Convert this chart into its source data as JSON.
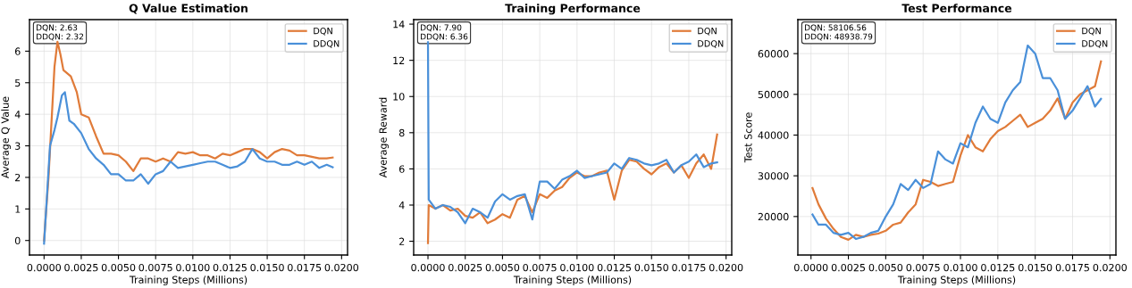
{
  "chart_data": [
    {
      "type": "line",
      "title": "Q Value Estimation",
      "xlabel": "Training Steps (Millions)",
      "ylabel": "Average Q Value",
      "annotations": [
        "DQN: 2.63\nDDQN: 2.32"
      ],
      "legend": "top right",
      "grid": true,
      "xlim": [
        -0.00098,
        0.0204
      ],
      "ylim": [
        -0.46,
        7.0
      ],
      "xticks": [
        {
          "value": 0,
          "label": "0.0000"
        },
        {
          "value": 0.0025,
          "label": "0.0025"
        },
        {
          "value": 0.005,
          "label": "0.0050"
        },
        {
          "value": 0.0075,
          "label": "0.0075"
        },
        {
          "value": 0.01,
          "label": "0.0100"
        },
        {
          "value": 0.0125,
          "label": "0.0125"
        },
        {
          "value": 0.015,
          "label": "0.0150"
        },
        {
          "value": 0.0175,
          "label": "0.0175"
        },
        {
          "value": 0.02,
          "label": "0.0200"
        }
      ],
      "yticks": [
        0,
        1,
        2,
        3,
        4,
        5,
        6
      ],
      "series": [
        {
          "name": "DQN",
          "color": "#e07b39",
          "x": [
            0,
            0.0003,
            0.0007,
            0.0009,
            0.0011,
            0.0013,
            0.0018,
            0.0022,
            0.0025,
            0.003,
            0.0035,
            0.004,
            0.0045,
            0.005,
            0.0055,
            0.006,
            0.0065,
            0.007,
            0.0075,
            0.008,
            0.0085,
            0.009,
            0.0095,
            0.01,
            0.0105,
            0.011,
            0.0115,
            0.012,
            0.0125,
            0.013,
            0.0135,
            0.014,
            0.0145,
            0.015,
            0.0155,
            0.016,
            0.0165,
            0.017,
            0.0175,
            0.018,
            0.0185,
            0.019,
            0.0194
          ],
          "values": [
            0,
            2,
            5.5,
            6.3,
            5.9,
            5.4,
            5.2,
            4.7,
            4.0,
            3.9,
            3.3,
            2.75,
            2.75,
            2.7,
            2.5,
            2.2,
            2.6,
            2.6,
            2.5,
            2.6,
            2.5,
            2.8,
            2.75,
            2.8,
            2.7,
            2.7,
            2.6,
            2.75,
            2.7,
            2.8,
            2.9,
            2.9,
            2.8,
            2.6,
            2.8,
            2.9,
            2.85,
            2.7,
            2.7,
            2.65,
            2.6,
            2.6,
            2.63
          ]
        },
        {
          "name": "DDQN",
          "color": "#4a90d9",
          "x": [
            0,
            0.0004,
            0.0007,
            0.0009,
            0.0012,
            0.0014,
            0.0017,
            0.002,
            0.0025,
            0.003,
            0.0035,
            0.004,
            0.0045,
            0.005,
            0.0055,
            0.006,
            0.0065,
            0.007,
            0.0075,
            0.008,
            0.0085,
            0.009,
            0.0095,
            0.01,
            0.0105,
            0.011,
            0.0115,
            0.012,
            0.0125,
            0.013,
            0.0135,
            0.014,
            0.0145,
            0.015,
            0.0155,
            0.016,
            0.0165,
            0.017,
            0.0175,
            0.018,
            0.0185,
            0.019,
            0.0194
          ],
          "values": [
            -0.1,
            3.0,
            3.5,
            3.9,
            4.6,
            4.7,
            3.8,
            3.7,
            3.4,
            2.9,
            2.6,
            2.4,
            2.1,
            2.1,
            1.9,
            1.9,
            2.1,
            1.8,
            2.1,
            2.2,
            2.5,
            2.3,
            2.35,
            2.4,
            2.45,
            2.5,
            2.5,
            2.4,
            2.3,
            2.35,
            2.5,
            2.9,
            2.6,
            2.5,
            2.5,
            2.4,
            2.4,
            2.5,
            2.4,
            2.5,
            2.3,
            2.4,
            2.32
          ]
        }
      ]
    },
    {
      "type": "line",
      "title": "Training Performance",
      "xlabel": "Training Steps (Millions)",
      "ylabel": "Average Reward",
      "annotations": [
        "DQN: 7.90\nDDQN: 6.36"
      ],
      "legend": "top right",
      "grid": true,
      "xlim": [
        -0.00096,
        0.02038
      ],
      "ylim": [
        1.24,
        14.25
      ],
      "xticks": [
        {
          "value": 0,
          "label": "0.0000"
        },
        {
          "value": 0.0025,
          "label": "0.0025"
        },
        {
          "value": 0.005,
          "label": "0.0050"
        },
        {
          "value": 0.0075,
          "label": "0.0075"
        },
        {
          "value": 0.01,
          "label": "0.0100"
        },
        {
          "value": 0.0125,
          "label": "0.0125"
        },
        {
          "value": 0.015,
          "label": "0.0150"
        },
        {
          "value": 0.0175,
          "label": "0.0175"
        },
        {
          "value": 0.02,
          "label": "0.0200"
        }
      ],
      "yticks": [
        2,
        4,
        6,
        8,
        10,
        12,
        14
      ],
      "series": [
        {
          "name": "DQN",
          "color": "#e07b39",
          "x": [
            0,
            5e-05,
            0.0005,
            0.001,
            0.0015,
            0.002,
            0.0025,
            0.003,
            0.0035,
            0.004,
            0.0045,
            0.005,
            0.0055,
            0.006,
            0.0065,
            0.007,
            0.0075,
            0.008,
            0.0085,
            0.009,
            0.0095,
            0.01,
            0.0105,
            0.011,
            0.0115,
            0.012,
            0.0125,
            0.013,
            0.0135,
            0.014,
            0.0145,
            0.015,
            0.0155,
            0.016,
            0.0165,
            0.017,
            0.0175,
            0.018,
            0.0185,
            0.019,
            0.0194
          ],
          "values": [
            1.9,
            4.0,
            3.8,
            4.0,
            3.7,
            3.8,
            3.4,
            3.3,
            3.6,
            3.0,
            3.2,
            3.5,
            3.3,
            4.3,
            4.5,
            3.6,
            4.6,
            4.4,
            4.8,
            5.0,
            5.5,
            5.8,
            5.6,
            5.6,
            5.8,
            5.9,
            4.3,
            5.9,
            6.5,
            6.4,
            6.0,
            5.7,
            6.1,
            6.3,
            5.8,
            6.2,
            5.5,
            6.3,
            6.8,
            6.0,
            7.9
          ]
        },
        {
          "name": "DDQN",
          "color": "#4a90d9",
          "x": [
            0,
            5e-05,
            0.0005,
            0.001,
            0.0015,
            0.002,
            0.0025,
            0.003,
            0.0035,
            0.004,
            0.0045,
            0.005,
            0.0055,
            0.006,
            0.0065,
            0.007,
            0.0075,
            0.008,
            0.0085,
            0.009,
            0.0095,
            0.01,
            0.0105,
            0.011,
            0.0115,
            0.012,
            0.0125,
            0.013,
            0.0135,
            0.014,
            0.0145,
            0.015,
            0.0155,
            0.016,
            0.0165,
            0.017,
            0.0175,
            0.018,
            0.0185,
            0.019,
            0.0194
          ],
          "values": [
            13.0,
            4.3,
            3.8,
            4.0,
            3.9,
            3.6,
            3.0,
            3.8,
            3.6,
            3.3,
            4.2,
            4.6,
            4.3,
            4.5,
            4.6,
            3.2,
            5.3,
            5.3,
            4.9,
            5.4,
            5.6,
            5.9,
            5.5,
            5.6,
            5.7,
            5.8,
            6.3,
            6.0,
            6.6,
            6.5,
            6.3,
            6.2,
            6.3,
            6.5,
            5.8,
            6.2,
            6.4,
            6.8,
            6.1,
            6.3,
            6.36
          ]
        }
      ]
    },
    {
      "type": "line",
      "title": "Test Performance",
      "xlabel": "Training Steps (Millions)",
      "ylabel": "Test Score",
      "annotations": [
        "DQN: 58106.56\nDDQN: 48938.79"
      ],
      "legend": "top right",
      "grid": true,
      "xlim": [
        -0.00088,
        0.0204
      ],
      "ylim": [
        10550,
        68350
      ],
      "xticks": [
        {
          "value": 0,
          "label": "0.0000"
        },
        {
          "value": 0.0025,
          "label": "0.0025"
        },
        {
          "value": 0.005,
          "label": "0.0050"
        },
        {
          "value": 0.0075,
          "label": "0.0075"
        },
        {
          "value": 0.01,
          "label": "0.0100"
        },
        {
          "value": 0.0125,
          "label": "0.0125"
        },
        {
          "value": 0.015,
          "label": "0.0150"
        },
        {
          "value": 0.0175,
          "label": "0.0175"
        },
        {
          "value": 0.02,
          "label": "0.0200"
        }
      ],
      "yticks": [
        20000,
        30000,
        40000,
        50000,
        60000
      ],
      "series": [
        {
          "name": "DQN",
          "color": "#e07b39",
          "x": [
            0.0001,
            0.0005,
            0.001,
            0.0015,
            0.002,
            0.0025,
            0.003,
            0.0035,
            0.004,
            0.0045,
            0.005,
            0.0055,
            0.006,
            0.0065,
            0.007,
            0.0075,
            0.008,
            0.0085,
            0.009,
            0.0095,
            0.01,
            0.0105,
            0.011,
            0.0115,
            0.012,
            0.0125,
            0.013,
            0.0135,
            0.014,
            0.0145,
            0.015,
            0.0155,
            0.016,
            0.0165,
            0.017,
            0.0175,
            0.018,
            0.0185,
            0.019,
            0.0194
          ],
          "values": [
            27000,
            23000,
            19500,
            17000,
            15000,
            14300,
            15500,
            15000,
            15500,
            15800,
            16500,
            18000,
            18500,
            21000,
            23000,
            29000,
            28500,
            27500,
            28000,
            28500,
            35000,
            40000,
            37000,
            36000,
            39000,
            41000,
            42000,
            43500,
            45000,
            42000,
            43000,
            44000,
            46000,
            49000,
            44000,
            48000,
            50000,
            51000,
            52000,
            58100
          ]
        },
        {
          "name": "DDQN",
          "color": "#4a90d9",
          "x": [
            0.0001,
            0.0005,
            0.001,
            0.0015,
            0.002,
            0.0025,
            0.003,
            0.0035,
            0.004,
            0.0045,
            0.005,
            0.0055,
            0.006,
            0.0065,
            0.007,
            0.0075,
            0.008,
            0.0085,
            0.009,
            0.0095,
            0.01,
            0.0105,
            0.011,
            0.0115,
            0.012,
            0.0125,
            0.013,
            0.0135,
            0.014,
            0.0145,
            0.015,
            0.0155,
            0.016,
            0.0165,
            0.017,
            0.0175,
            0.018,
            0.0185,
            0.019,
            0.0194
          ],
          "values": [
            20500,
            18000,
            18000,
            16000,
            15500,
            16000,
            14500,
            15000,
            16000,
            16500,
            20000,
            23000,
            28000,
            26500,
            29000,
            27000,
            28000,
            36000,
            34000,
            33000,
            38000,
            37000,
            43000,
            47000,
            44000,
            43000,
            48000,
            51000,
            53000,
            62000,
            60000,
            54000,
            54000,
            51000,
            44000,
            46000,
            49000,
            52000,
            47000,
            48900
          ]
        }
      ]
    }
  ]
}
